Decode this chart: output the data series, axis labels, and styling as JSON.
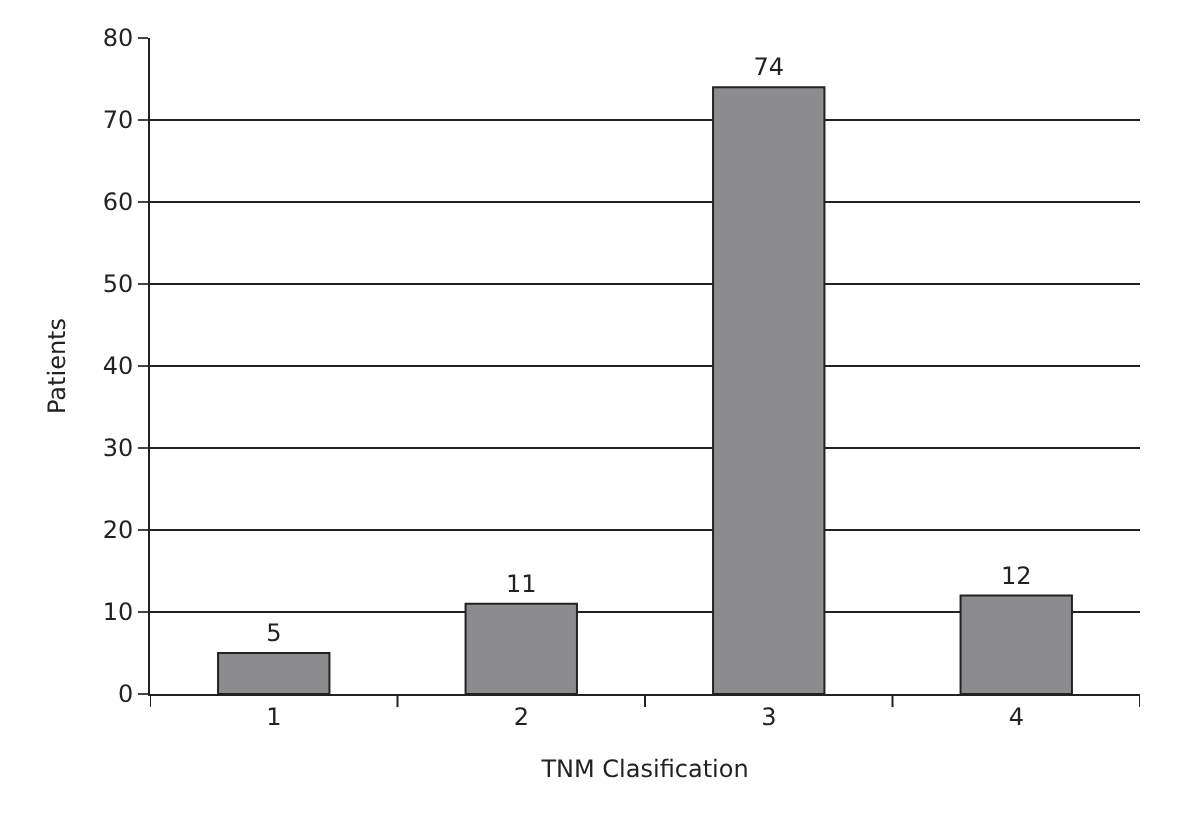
{
  "chart_data": {
    "type": "bar",
    "xlabel": "TNM Clasification",
    "ylabel": "Patients",
    "categories": [
      "1",
      "2",
      "3",
      "4"
    ],
    "values": [
      5,
      11,
      74,
      12
    ],
    "color": "#8c8c8e",
    "ylim": [
      0,
      80
    ],
    "yticks": [
      0,
      10,
      20,
      30,
      40,
      50,
      60,
      70,
      80
    ],
    "grid": "y",
    "data_labels": true,
    "legend": false
  }
}
